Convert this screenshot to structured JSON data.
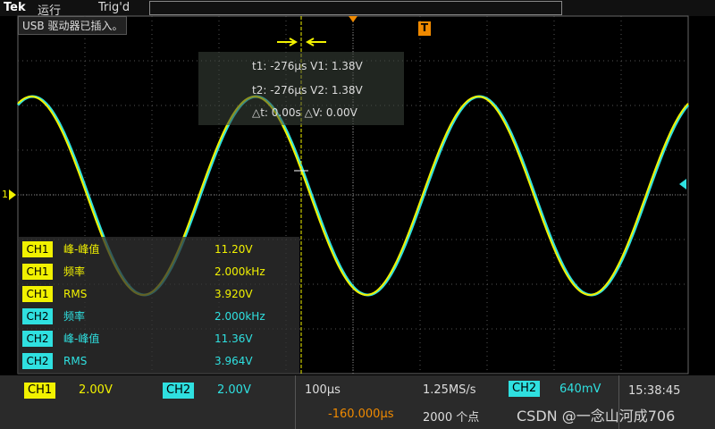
{
  "top_bar": {
    "brand": "Tek",
    "status": "运行",
    "trigger": "Trig'd"
  },
  "notice": "USB 驱动器已插入。",
  "markers": {
    "trigger": "T",
    "channel": "1"
  },
  "cursor_readout": [
    "t1: -276µs  V1: 1.38V",
    "t2: -276µs  V2: 1.38V",
    "△t: 0.00s  △V: 0.00V"
  ],
  "measurements": [
    {
      "channel": "CH1",
      "name": "峰-峰值",
      "value": "11.20V"
    },
    {
      "channel": "CH1",
      "name": "频率",
      "value": "2.000kHz"
    },
    {
      "channel": "CH1",
      "name": "RMS",
      "value": "3.920V"
    },
    {
      "channel": "CH2",
      "name": "频率",
      "value": "2.000kHz"
    },
    {
      "channel": "CH2",
      "name": "峰-峰值",
      "value": "11.36V"
    },
    {
      "channel": "CH2",
      "name": "RMS",
      "value": "3.964V"
    }
  ],
  "bottom_bar": {
    "ch1_label": "CH1",
    "ch1_scale": "2.00V",
    "ch2_label": "CH2",
    "ch2_scale": "2.00V",
    "timebase": "100µs",
    "sample_rate": "1.25MS/s",
    "position": "-160.000µs",
    "record_length": "2000 个点",
    "trigger_source": "CH2",
    "trigger_level": "640mV",
    "time": "15:38:45"
  },
  "watermark": "CSDN @一念山河成706"
}
